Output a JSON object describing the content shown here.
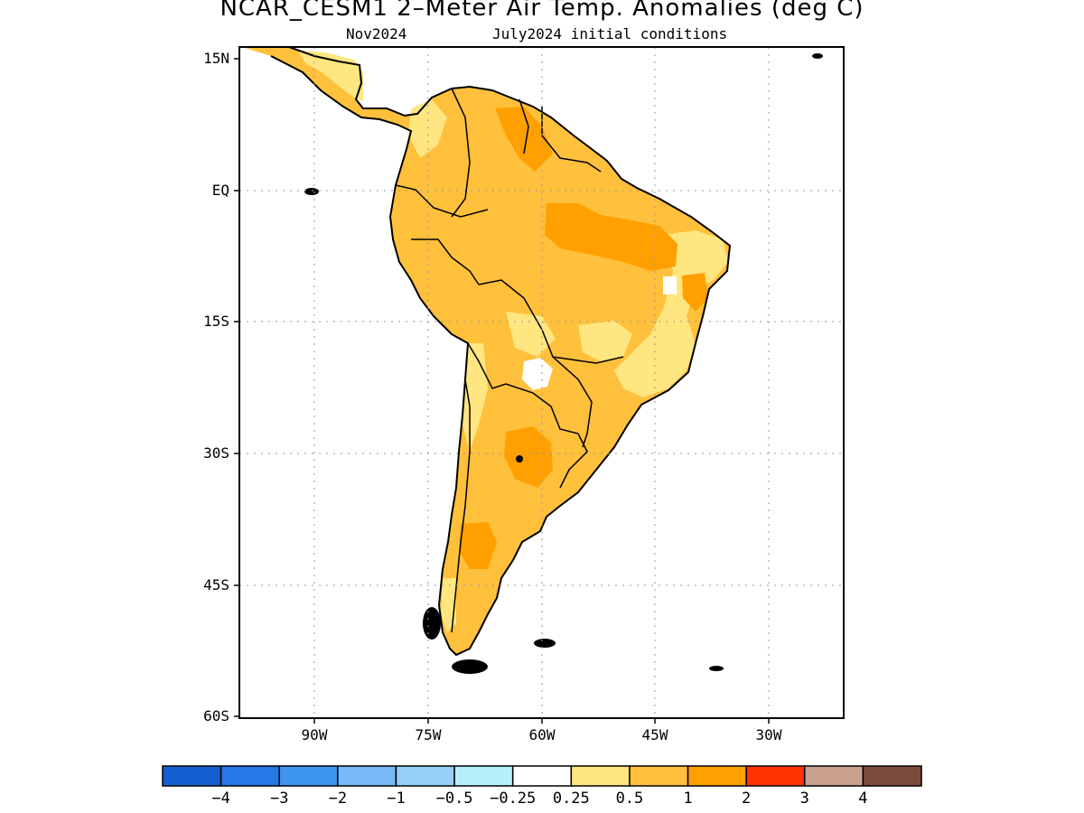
{
  "title": "NCAR_CESM1 2–Meter Air Temp. Anomalies (deg C)",
  "subtitle_left": "Nov2024",
  "subtitle_right": "July2024 initial conditions",
  "lat_labels": [
    "15N",
    "EQ",
    "15S",
    "30S",
    "45S",
    "60S"
  ],
  "lon_labels": [
    "90W",
    "75W",
    "60W",
    "45W",
    "30W"
  ],
  "colorbar": {
    "colors": [
      "#1560d0",
      "#2478e8",
      "#3c96f0",
      "#78b8f6",
      "#96d0fa",
      "#b4f0fa",
      "#ffffff",
      "#ffe680",
      "#ffc03c",
      "#ffa000",
      "#ff3200",
      "#c8a08c",
      "#7d4b3c"
    ],
    "labels": [
      "−4",
      "−3",
      "−2",
      "−1",
      "−0.5",
      "−0.25",
      "0.25",
      "0.5",
      "1",
      "2",
      "3",
      "4"
    ]
  },
  "map_data": {
    "variable": "2-meter air temperature anomaly",
    "units": "deg C",
    "lon_range": [
      -100,
      -20
    ],
    "lat_range": [
      -60,
      16
    ],
    "region": "South America"
  }
}
